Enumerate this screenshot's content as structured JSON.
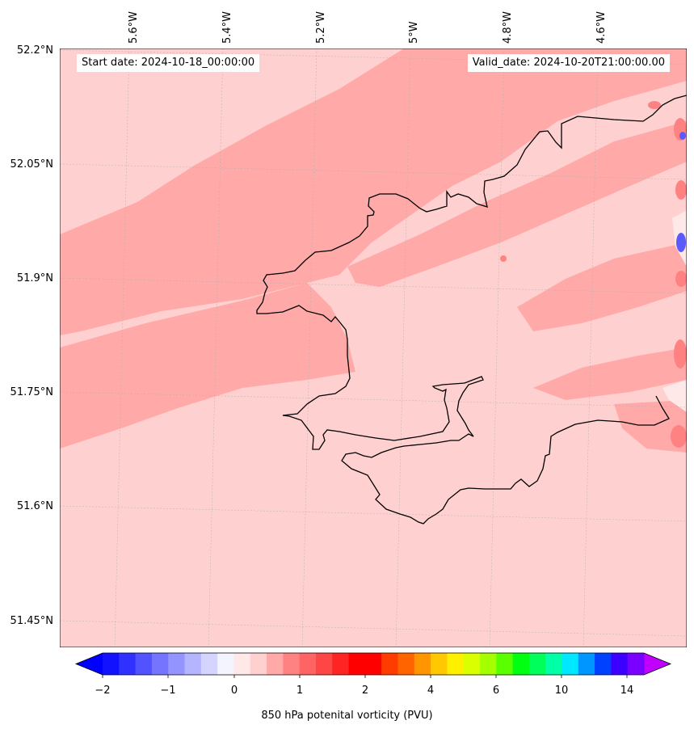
{
  "header": {
    "start_date": "Start date: 2024-10-18_00:00:00",
    "valid_date": "Valid_date: 2024-10-20T21:00:00.00"
  },
  "map": {
    "longitude_labels": [
      "5.6°W",
      "5.4°W",
      "5.2°W",
      "5°W",
      "4.8°W",
      "4.6°W"
    ],
    "latitude_labels": [
      "52.2°N",
      "52.05°N",
      "51.9°N",
      "51.75°N",
      "51.6°N",
      "51.45°N"
    ],
    "field_colors": {
      "background": "#ffd0d0",
      "band": "#ffa9a9",
      "light": "#fee8e8",
      "strong": "#ff8282",
      "negative": "#5a5aff",
      "coastline": "#000000"
    }
  },
  "colorbar": {
    "label": "850 hPa potenital vorticity (PVU)",
    "tick_labels": [
      "−2",
      "−1",
      "0",
      "1",
      "2",
      "4",
      "6",
      "10",
      "14"
    ],
    "colors": [
      "#1212ff",
      "#3131ff",
      "#5252ff",
      "#7474ff",
      "#9494ff",
      "#b4b4ff",
      "#d4d4ff",
      "#f4f4ff",
      "#ffe8e8",
      "#ffd0d0",
      "#ffa9a9",
      "#ff8282",
      "#ff6464",
      "#ff4646",
      "#ff2424",
      "#ff0000",
      "#ff0000",
      "#ff3c00",
      "#ff6400",
      "#ff9600",
      "#ffc800",
      "#fff000",
      "#d9ff00",
      "#a6ff00",
      "#5aff00",
      "#00ff10",
      "#00ff5a",
      "#00ffa6",
      "#00e8ff",
      "#0096ff",
      "#0040ff",
      "#3c00ff",
      "#7a00ff"
    ],
    "extend_low_color": "#0000ff",
    "extend_high_color": "#c000ff"
  }
}
